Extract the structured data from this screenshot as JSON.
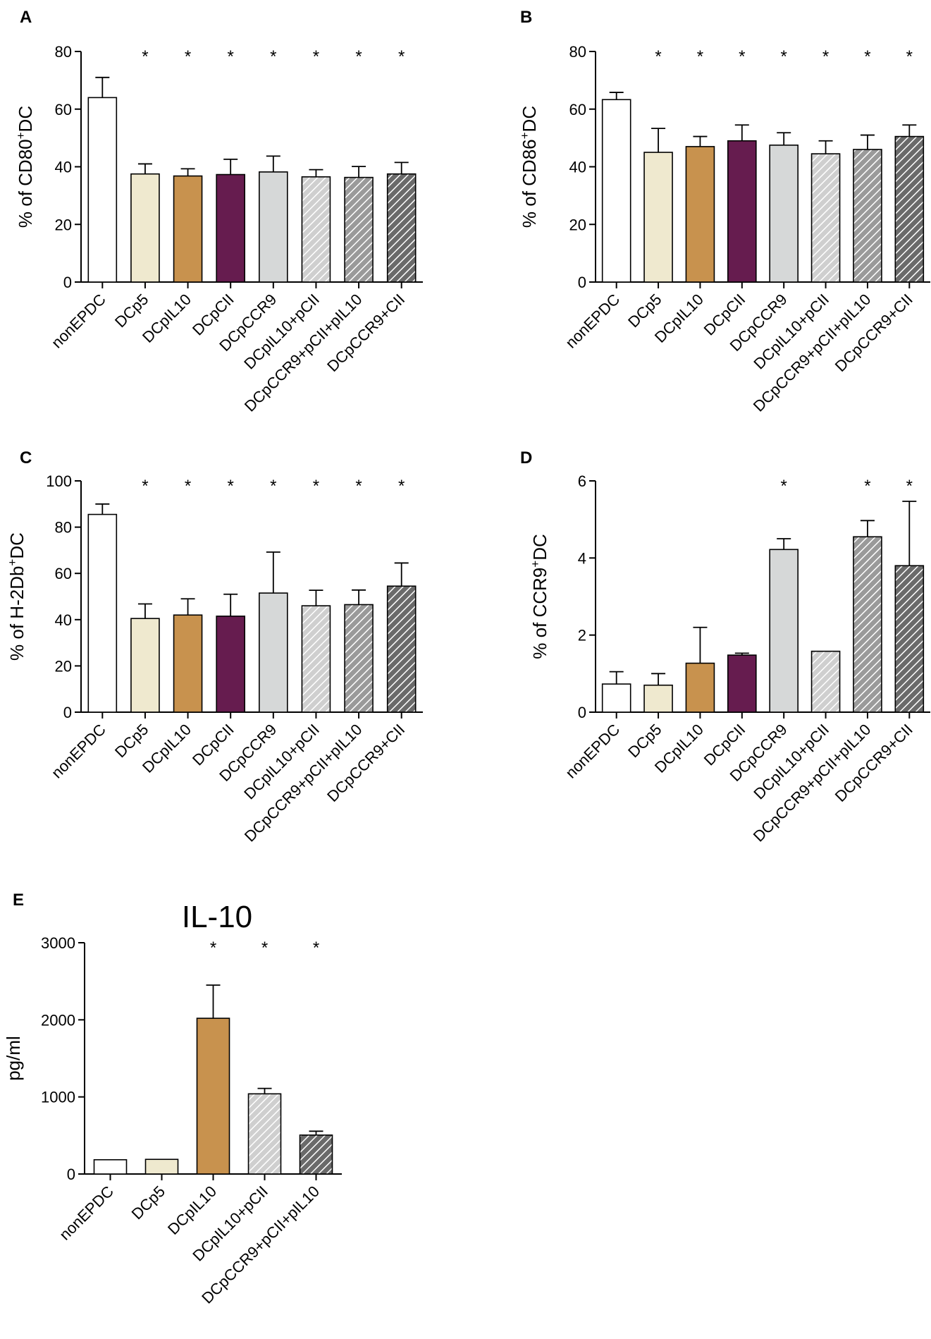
{
  "patterns": {
    "light_hatch": {
      "bg": "#cfcfcf",
      "line": "#ffffff"
    },
    "mid_hatch": {
      "bg": "#9a9a9a",
      "line": "#ffffff"
    },
    "dark_hatch": {
      "bg": "#6a6a6a",
      "line": "#ffffff"
    }
  },
  "chart_data": [
    {
      "panel": "A",
      "type": "bar",
      "title": "",
      "ylabel_parts": [
        "% of CD80",
        "+",
        "DC"
      ],
      "xlabel": "",
      "ylim": [
        0,
        80
      ],
      "yticks": [
        0,
        20,
        40,
        60,
        80
      ],
      "ytick_labels": [
        "0",
        "20",
        "40",
        "60",
        "80"
      ],
      "categories": [
        "nonEPDC",
        "DCp5",
        "DCpIL10",
        "DCpCII",
        "DCpCCR9",
        "DCpIL10+pCII",
        "DCpCCR9+pCII+pIL10",
        "DCpCCR9+CII"
      ],
      "values": [
        64,
        37.5,
        36.8,
        37.3,
        38.2,
        36.5,
        36.3,
        37.5
      ],
      "errors": [
        7,
        3.5,
        2.5,
        5.3,
        5.5,
        2.5,
        3.8,
        4
      ],
      "significance": [
        "",
        "*",
        "*",
        "*",
        "*",
        "*",
        "*",
        "*"
      ],
      "fills": [
        "#ffffff",
        "#efe9cf",
        "#c8924e",
        "#661c4f",
        "#d6d8d8",
        "url(#pat-light)",
        "url(#pat-mid)",
        "url(#pat-dark)"
      ]
    },
    {
      "panel": "B",
      "type": "bar",
      "title": "",
      "ylabel_parts": [
        "% of CD86",
        "+",
        "DC"
      ],
      "xlabel": "",
      "ylim": [
        0,
        80
      ],
      "yticks": [
        0,
        20,
        40,
        60,
        80
      ],
      "ytick_labels": [
        "0",
        "20",
        "40",
        "60",
        "80"
      ],
      "categories": [
        "nonEPDC",
        "DCp5",
        "DCpIL10",
        "DCpCII",
        "DCpCCR9",
        "DCpIL10+pCII",
        "DCpCCR9+pCII+pIL10",
        "DCpCCR9+CII"
      ],
      "values": [
        63.3,
        45,
        47,
        49,
        47.5,
        44.5,
        46,
        50.5
      ],
      "errors": [
        2.5,
        8.3,
        3.5,
        5.5,
        4.3,
        4.5,
        5,
        4
      ],
      "significance": [
        "",
        "*",
        "*",
        "*",
        "*",
        "*",
        "*",
        "*"
      ],
      "fills": [
        "#ffffff",
        "#efe9cf",
        "#c8924e",
        "#661c4f",
        "#d6d8d8",
        "url(#pat-light)",
        "url(#pat-mid)",
        "url(#pat-dark)"
      ]
    },
    {
      "panel": "C",
      "type": "bar",
      "title": "",
      "ylabel_parts": [
        "% of H-2Db",
        "+",
        "DC"
      ],
      "xlabel": "",
      "ylim": [
        0,
        100
      ],
      "yticks": [
        0,
        20,
        40,
        60,
        80,
        100
      ],
      "ytick_labels": [
        "0",
        "20",
        "40",
        "60",
        "80",
        "100"
      ],
      "categories": [
        "nonEPDC",
        "DCp5",
        "DCpIL10",
        "DCpCII",
        "DCpCCR9",
        "DCpIL10+pCII",
        "DCpCCR9+pCII+pIL10",
        "DCpCCR9+CII"
      ],
      "values": [
        85.5,
        40.5,
        42,
        41.5,
        51.5,
        46,
        46.5,
        54.5
      ],
      "errors": [
        4.5,
        6.3,
        7,
        9.5,
        17.7,
        6.7,
        6.3,
        10
      ],
      "significance": [
        "",
        "*",
        "*",
        "*",
        "*",
        "*",
        "*",
        "*"
      ],
      "fills": [
        "#ffffff",
        "#efe9cf",
        "#c8924e",
        "#661c4f",
        "#d6d8d8",
        "url(#pat-light)",
        "url(#pat-mid)",
        "url(#pat-dark)"
      ]
    },
    {
      "panel": "D",
      "type": "bar",
      "title": "",
      "ylabel_parts": [
        "% of CCR9",
        "+",
        "DC"
      ],
      "xlabel": "",
      "ylim": [
        0,
        6
      ],
      "yticks": [
        0,
        2,
        4,
        6
      ],
      "ytick_labels": [
        "0",
        "2",
        "4",
        "6"
      ],
      "categories": [
        "nonEPDC",
        "DCp5",
        "DCpIL10",
        "DCpCII",
        "DCpCCR9",
        "DCpIL10+pCII",
        "DCpCCR9+pCII+pIL10",
        "DCpCCR9+CII"
      ],
      "values": [
        0.73,
        0.7,
        1.27,
        1.48,
        4.22,
        1.58,
        4.55,
        3.8
      ],
      "errors": [
        0.32,
        0.3,
        0.93,
        0.05,
        0.28,
        0,
        0.42,
        1.67
      ],
      "significance": [
        "",
        "",
        "",
        "",
        "*",
        "",
        "*",
        "*"
      ],
      "fills": [
        "#ffffff",
        "#efe9cf",
        "#c8924e",
        "#661c4f",
        "#d6d8d8",
        "url(#pat-light)",
        "url(#pat-mid)",
        "url(#pat-dark)"
      ]
    },
    {
      "panel": "E",
      "type": "bar",
      "title": "IL-10",
      "ylabel_parts": [
        "pg/ml",
        "",
        ""
      ],
      "xlabel": "",
      "ylim": [
        0,
        3000
      ],
      "yticks": [
        0,
        1000,
        2000,
        3000
      ],
      "ytick_labels": [
        "0",
        "1000",
        "2000",
        "3000"
      ],
      "categories": [
        "nonEPDC",
        "DCp5",
        "DCpIL10",
        "DCpIL10+pCII",
        "DCpCCR9+pCII+pIL10"
      ],
      "values": [
        185,
        190,
        2020,
        1040,
        505
      ],
      "errors": [
        0,
        0,
        430,
        70,
        50
      ],
      "significance": [
        "",
        "",
        "*",
        "*",
        "*"
      ],
      "fills": [
        "#ffffff",
        "#efe9cf",
        "#c8924e",
        "url(#pat-light)",
        "url(#pat-dark)"
      ]
    }
  ]
}
